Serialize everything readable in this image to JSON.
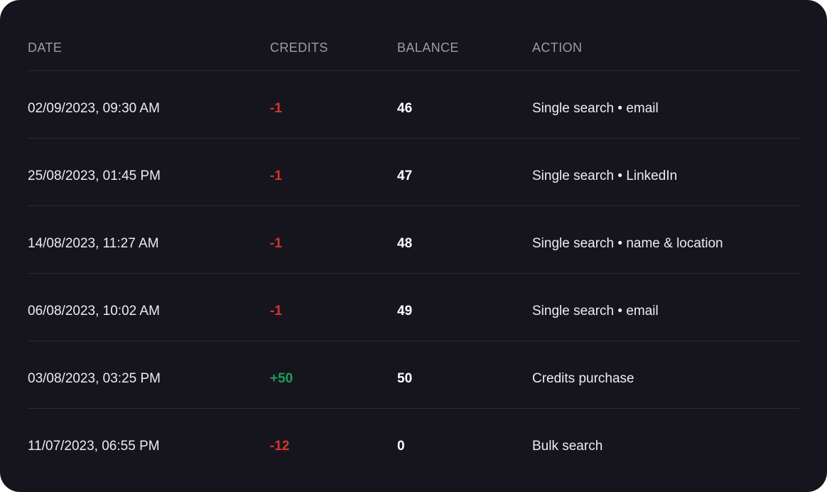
{
  "table": {
    "headers": {
      "date": "DATE",
      "credits": "CREDITS",
      "balance": "BALANCE",
      "action": "ACTION"
    },
    "rows": [
      {
        "date": "02/09/2023, 09:30 AM",
        "credits": "-1",
        "balance": "46",
        "action": "Single search • email",
        "credit_type": "debit"
      },
      {
        "date": "25/08/2023, 01:45 PM",
        "credits": "-1",
        "balance": "47",
        "action": "Single search • LinkedIn",
        "credit_type": "debit"
      },
      {
        "date": "14/08/2023, 11:27 AM",
        "credits": "-1",
        "balance": "48",
        "action": "Single search • name & location",
        "credit_type": "debit"
      },
      {
        "date": "06/08/2023, 10:02 AM",
        "credits": "-1",
        "balance": "49",
        "action": "Single search • email",
        "credit_type": "debit"
      },
      {
        "date": "03/08/2023, 03:25 PM",
        "credits": "+50",
        "balance": "50",
        "action": "Credits purchase",
        "credit_type": "credit"
      },
      {
        "date": "11/07/2023, 06:55 PM",
        "credits": "-12",
        "balance": "0",
        "action": "Bulk search",
        "credit_type": "debit"
      }
    ]
  },
  "colors": {
    "background": "#16151d",
    "debit": "#d6342f",
    "credit": "#1f9d57",
    "divider": "#2b2a33",
    "header_text": "#9c9ba3"
  }
}
